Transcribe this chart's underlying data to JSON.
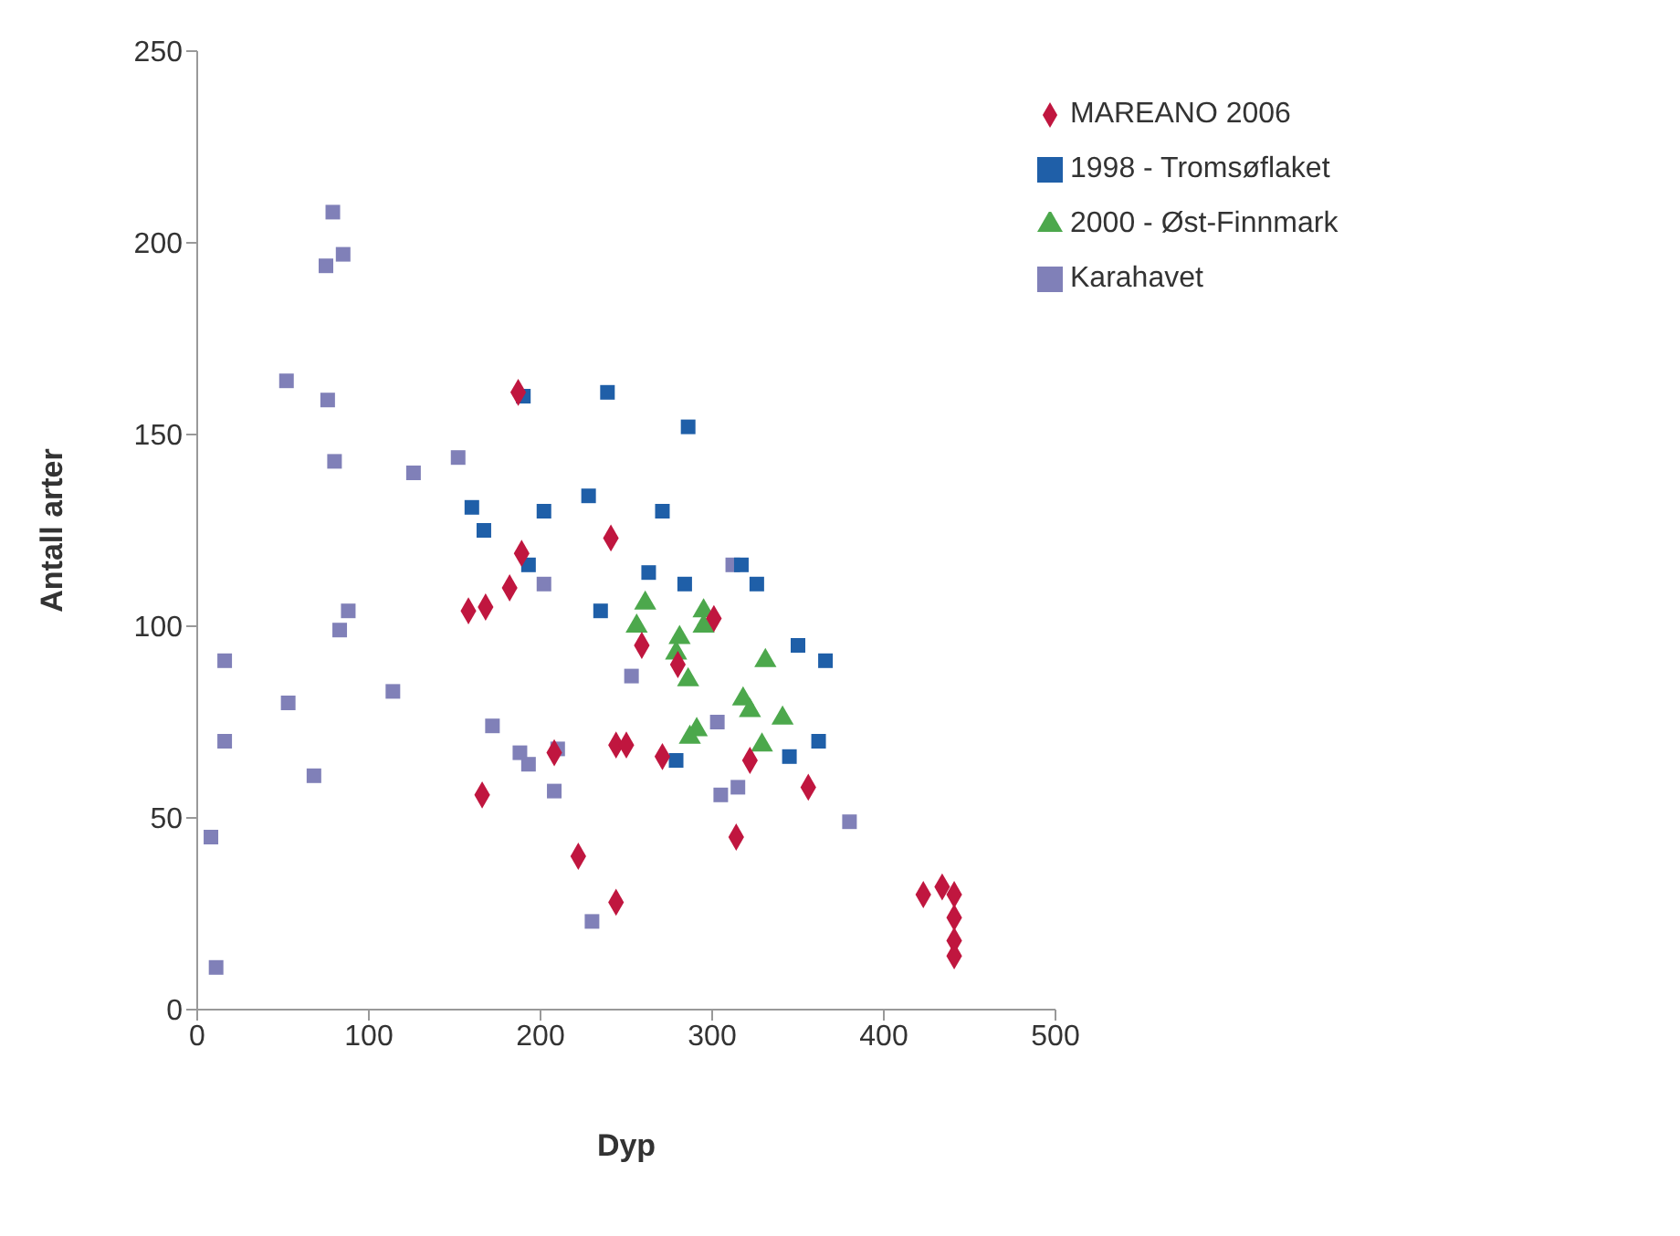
{
  "chart_data": {
    "type": "scatter",
    "xlabel": "Dyp",
    "ylabel": "Antall arter",
    "xlim": [
      0,
      500
    ],
    "xticks": [
      0,
      100,
      200,
      300,
      400,
      500
    ],
    "ylim": [
      0,
      250
    ],
    "yticks": [
      0,
      50,
      100,
      150,
      200,
      250
    ],
    "grid": false,
    "legend": "top right",
    "series": [
      {
        "name": "MAREANO 2006",
        "color": "#c0163f",
        "marker": "diamond",
        "x": [
          187,
          189,
          182,
          158,
          168,
          166,
          241,
          259,
          280,
          301,
          208,
          222,
          244,
          244,
          250,
          271,
          322,
          314,
          356,
          423,
          434,
          441,
          441,
          441,
          441
        ],
        "values": [
          161,
          119,
          110,
          104,
          105,
          56,
          123,
          95,
          90,
          102,
          67,
          40,
          28,
          69,
          69,
          66,
          65,
          45,
          58,
          30,
          32,
          30,
          24,
          18,
          14
        ]
      },
      {
        "name": "1998 - Tromsøflaket",
        "color": "#1f5fa8",
        "marker": "square",
        "x": [
          190,
          239,
          286,
          228,
          202,
          271,
          193,
          263,
          284,
          317,
          326,
          235,
          350,
          366,
          345,
          362,
          279,
          160,
          167
        ],
        "values": [
          160,
          161,
          152,
          134,
          130,
          130,
          116,
          114,
          111,
          116,
          111,
          104,
          95,
          91,
          66,
          70,
          65,
          131,
          125
        ]
      },
      {
        "name": "2000 - Øst-Finnmark",
        "color": "#4ca84c",
        "marker": "triangle",
        "x": [
          261,
          256,
          281,
          279,
          286,
          295,
          295,
          331,
          318,
          322,
          341,
          329,
          291,
          287
        ],
        "values": [
          106,
          100,
          97,
          93,
          86,
          104,
          100,
          91,
          81,
          78,
          76,
          69,
          73,
          71
        ]
      },
      {
        "name": "Karahavet",
        "color": "#8080b8",
        "marker": "square",
        "x": [
          79,
          75,
          85,
          52,
          76,
          80,
          126,
          152,
          88,
          83,
          16,
          53,
          114,
          16,
          68,
          8,
          11,
          172,
          188,
          193,
          202,
          253,
          312,
          303,
          208,
          210,
          230,
          305,
          315,
          380
        ],
        "values": [
          208,
          194,
          197,
          164,
          159,
          143,
          140,
          144,
          104,
          99,
          91,
          80,
          83,
          70,
          61,
          45,
          11,
          74,
          67,
          64,
          111,
          87,
          116,
          75,
          57,
          68,
          23,
          56,
          58,
          49
        ]
      }
    ]
  }
}
